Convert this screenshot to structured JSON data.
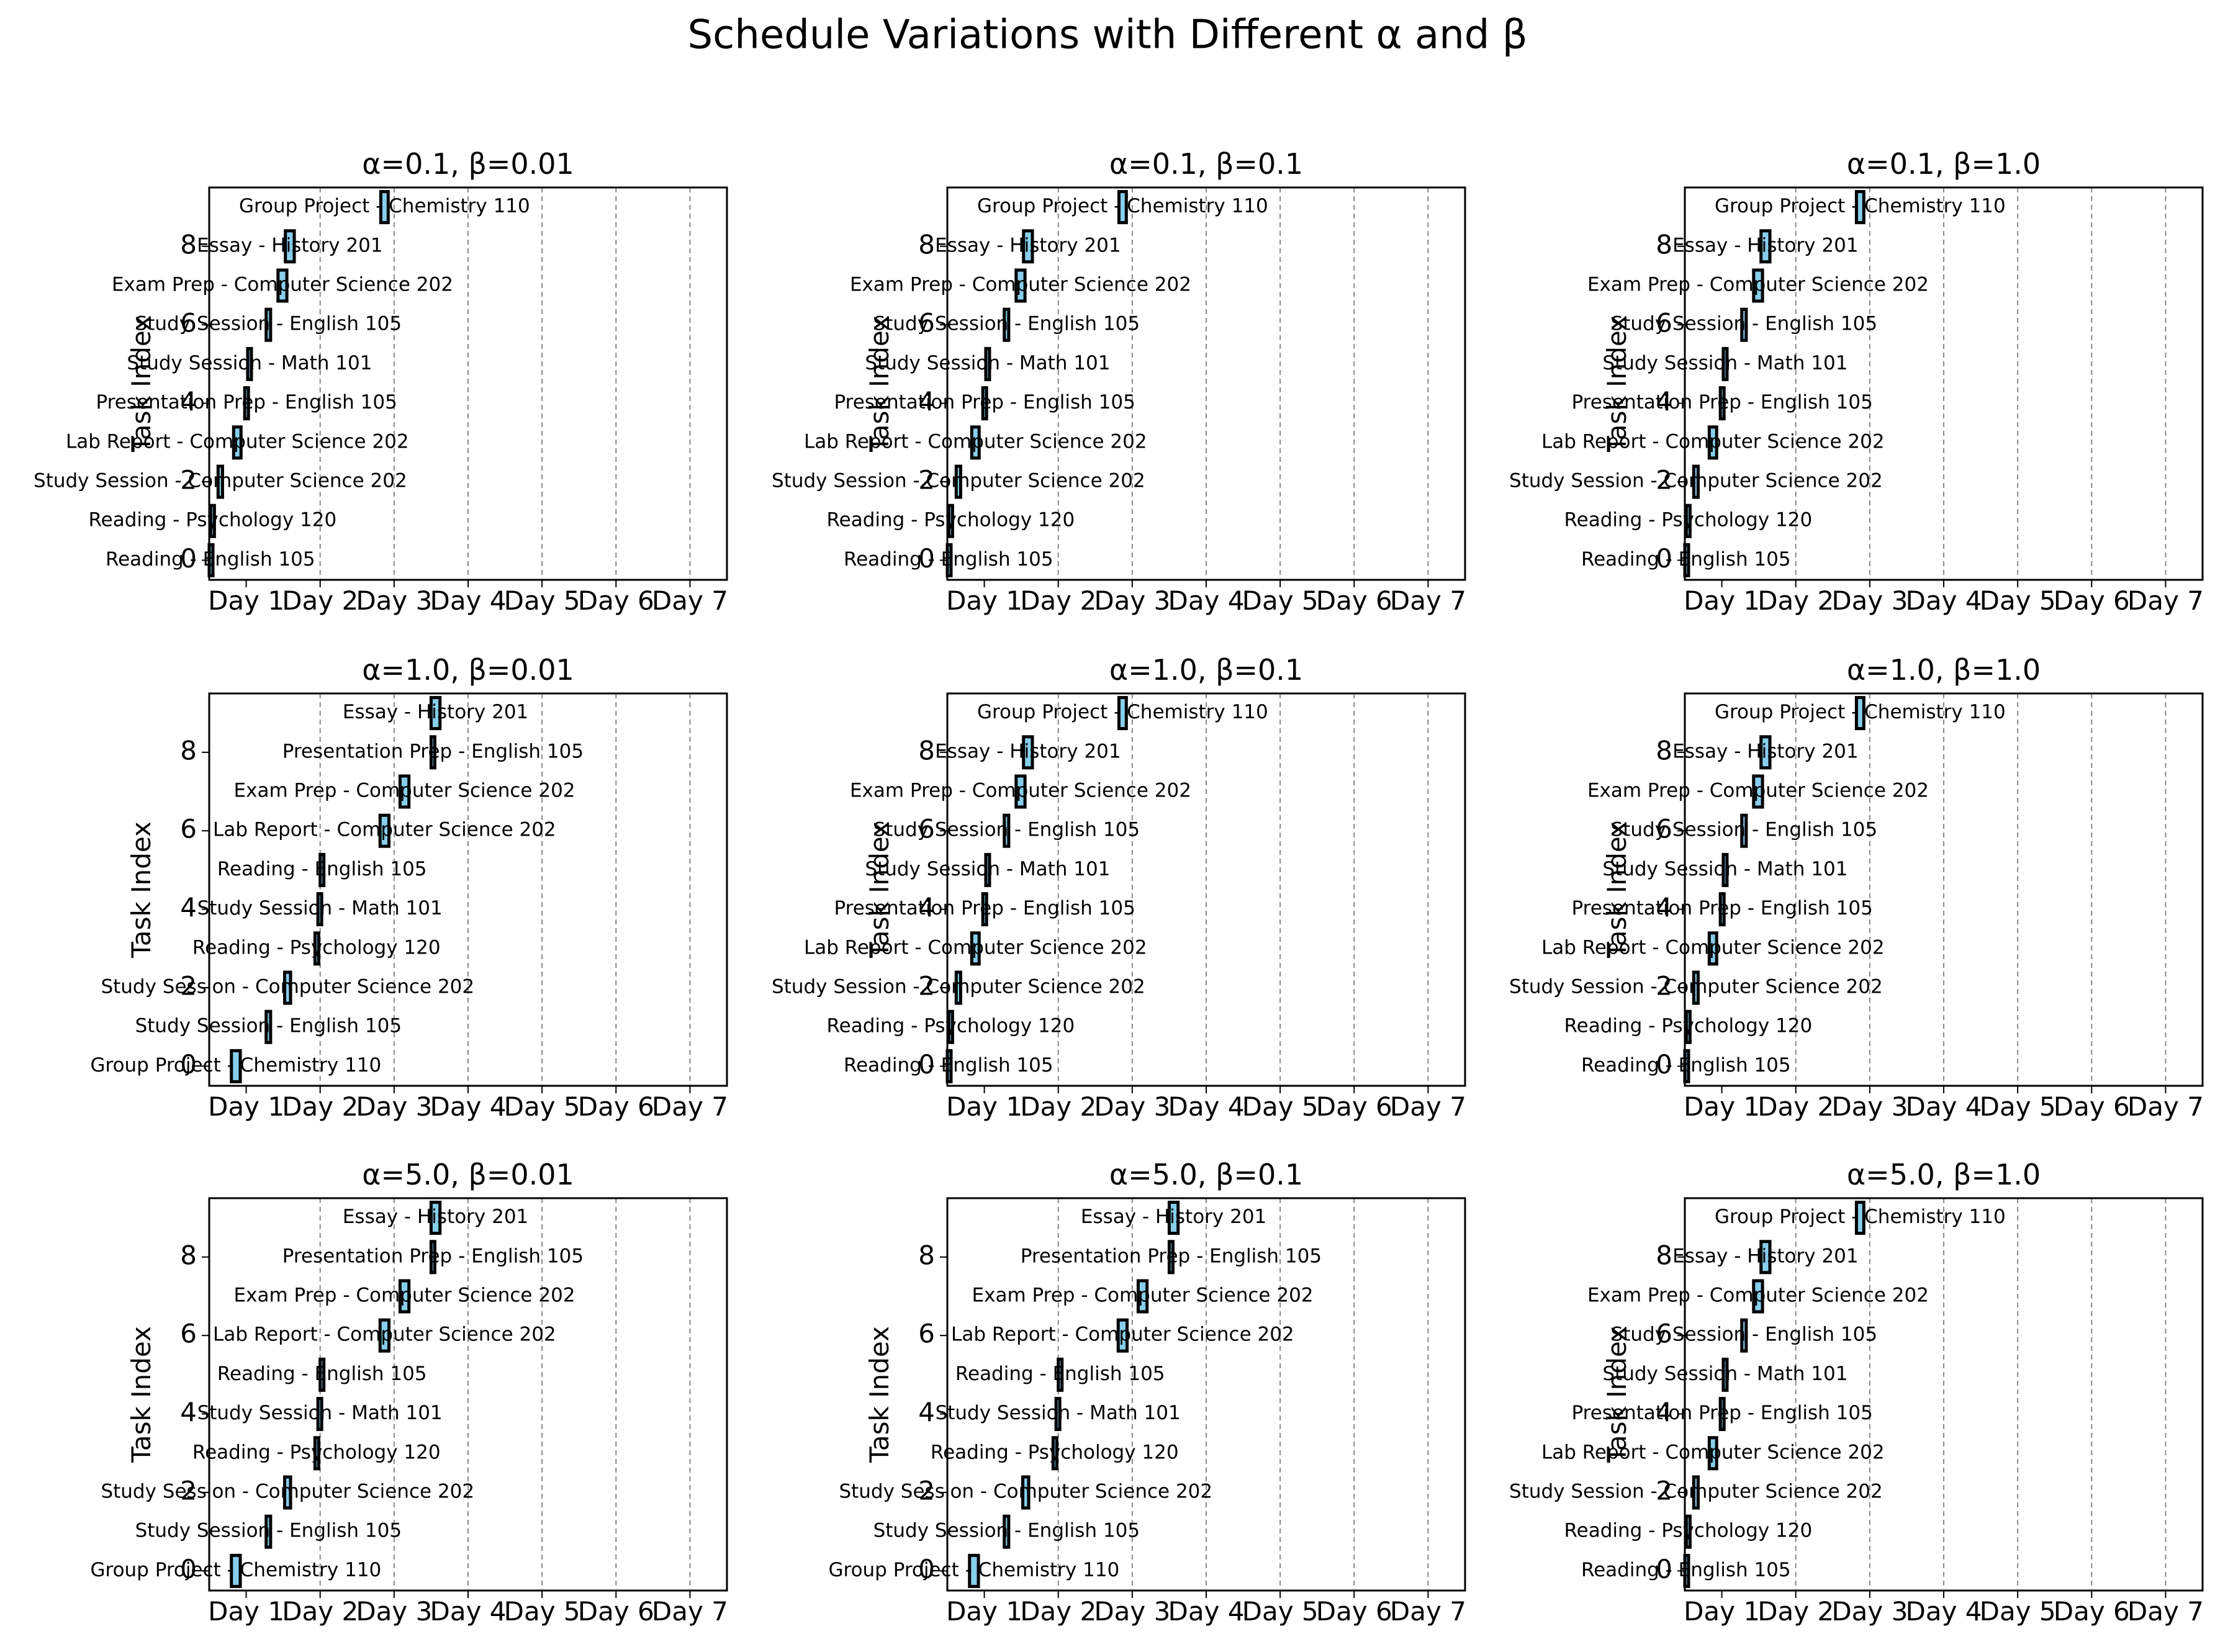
{
  "figure": {
    "suptitle": "Schedule Variations with Different α and β"
  },
  "chart_data": [
    {
      "type": "bar",
      "title": "α=0.1, β=0.01",
      "xlabel": "",
      "ylabel": "Task Index",
      "x_ticks": [
        "Day 1",
        "Day 2",
        "Day 3",
        "Day 4",
        "Day 5",
        "Day 6",
        "Day 7"
      ],
      "y_ticks": [
        0,
        2,
        4,
        6,
        8
      ],
      "xlim": [
        0,
        7
      ],
      "ylim": [
        -0.5,
        9.5
      ],
      "grid": "vertical dashed",
      "bar_color": "#87ceeb",
      "tasks": [
        {
          "index": 0,
          "label": "Reading - English 105",
          "start": 0.0,
          "duration": 0.03
        },
        {
          "index": 1,
          "label": "Reading - Psychology 120",
          "start": 0.02,
          "duration": 0.05
        },
        {
          "index": 2,
          "label": "Study Session - Computer Science 202",
          "start": 0.12,
          "duration": 0.06
        },
        {
          "index": 3,
          "label": "Lab Report - Computer Science 202",
          "start": 0.33,
          "duration": 0.1
        },
        {
          "index": 4,
          "label": "Presentation Prep - English 105",
          "start": 0.48,
          "duration": 0.05
        },
        {
          "index": 5,
          "label": "Study Session - Math 101",
          "start": 0.52,
          "duration": 0.05
        },
        {
          "index": 6,
          "label": "Study Session - English 105",
          "start": 0.77,
          "duration": 0.06
        },
        {
          "index": 7,
          "label": "Exam Prep - Computer Science 202",
          "start": 0.93,
          "duration": 0.12
        },
        {
          "index": 8,
          "label": "Essay - History 201",
          "start": 1.03,
          "duration": 0.12
        },
        {
          "index": 9,
          "label": "Group Project - Chemistry 110",
          "start": 2.32,
          "duration": 0.1
        }
      ]
    },
    {
      "type": "bar",
      "title": "α=0.1, β=0.1",
      "xlabel": "",
      "ylabel": "Task Index",
      "x_ticks": [
        "Day 1",
        "Day 2",
        "Day 3",
        "Day 4",
        "Day 5",
        "Day 6",
        "Day 7"
      ],
      "y_ticks": [
        0,
        2,
        4,
        6,
        8
      ],
      "xlim": [
        0,
        7
      ],
      "ylim": [
        -0.5,
        9.5
      ],
      "grid": "vertical dashed",
      "bar_color": "#87ceeb",
      "tasks": [
        {
          "index": 0,
          "label": "Reading - English 105",
          "start": 0.0,
          "duration": 0.03
        },
        {
          "index": 1,
          "label": "Reading - Psychology 120",
          "start": 0.02,
          "duration": 0.05
        },
        {
          "index": 2,
          "label": "Study Session - Computer Science 202",
          "start": 0.12,
          "duration": 0.06
        },
        {
          "index": 3,
          "label": "Lab Report - Computer Science 202",
          "start": 0.33,
          "duration": 0.1
        },
        {
          "index": 4,
          "label": "Presentation Prep - English 105",
          "start": 0.48,
          "duration": 0.05
        },
        {
          "index": 5,
          "label": "Study Session - Math 101",
          "start": 0.52,
          "duration": 0.05
        },
        {
          "index": 6,
          "label": "Study Session - English 105",
          "start": 0.77,
          "duration": 0.06
        },
        {
          "index": 7,
          "label": "Exam Prep - Computer Science 202",
          "start": 0.93,
          "duration": 0.12
        },
        {
          "index": 8,
          "label": "Essay - History 201",
          "start": 1.03,
          "duration": 0.12
        },
        {
          "index": 9,
          "label": "Group Project - Chemistry 110",
          "start": 2.32,
          "duration": 0.1
        }
      ]
    },
    {
      "type": "bar",
      "title": "α=0.1, β=1.0",
      "xlabel": "",
      "ylabel": "Task Index",
      "x_ticks": [
        "Day 1",
        "Day 2",
        "Day 3",
        "Day 4",
        "Day 5",
        "Day 6",
        "Day 7"
      ],
      "y_ticks": [
        0,
        2,
        4,
        6,
        8
      ],
      "xlim": [
        0,
        7
      ],
      "ylim": [
        -0.5,
        9.5
      ],
      "grid": "vertical dashed",
      "bar_color": "#87ceeb",
      "tasks": [
        {
          "index": 0,
          "label": "Reading - English 105",
          "start": 0.0,
          "duration": 0.03
        },
        {
          "index": 1,
          "label": "Reading - Psychology 120",
          "start": 0.02,
          "duration": 0.05
        },
        {
          "index": 2,
          "label": "Study Session - Computer Science 202",
          "start": 0.12,
          "duration": 0.06
        },
        {
          "index": 3,
          "label": "Lab Report - Computer Science 202",
          "start": 0.33,
          "duration": 0.1
        },
        {
          "index": 4,
          "label": "Presentation Prep - English 105",
          "start": 0.48,
          "duration": 0.05
        },
        {
          "index": 5,
          "label": "Study Session - Math 101",
          "start": 0.52,
          "duration": 0.05
        },
        {
          "index": 6,
          "label": "Study Session - English 105",
          "start": 0.77,
          "duration": 0.06
        },
        {
          "index": 7,
          "label": "Exam Prep - Computer Science 202",
          "start": 0.93,
          "duration": 0.12
        },
        {
          "index": 8,
          "label": "Essay - History 201",
          "start": 1.03,
          "duration": 0.12
        },
        {
          "index": 9,
          "label": "Group Project - Chemistry 110",
          "start": 2.32,
          "duration": 0.1
        }
      ]
    },
    {
      "type": "bar",
      "title": "α=1.0, β=0.01",
      "xlabel": "",
      "ylabel": "Task Index",
      "x_ticks": [
        "Day 1",
        "Day 2",
        "Day 3",
        "Day 4",
        "Day 5",
        "Day 6",
        "Day 7"
      ],
      "y_ticks": [
        0,
        2,
        4,
        6,
        8
      ],
      "xlim": [
        0,
        7
      ],
      "ylim": [
        -0.5,
        9.5
      ],
      "grid": "vertical dashed",
      "bar_color": "#87ceeb",
      "tasks": [
        {
          "index": 0,
          "label": "Group Project - Chemistry 110",
          "start": 0.3,
          "duration": 0.12
        },
        {
          "index": 1,
          "label": "Study Session - English 105",
          "start": 0.77,
          "duration": 0.06
        },
        {
          "index": 2,
          "label": "Study Session - Computer Science 202",
          "start": 1.02,
          "duration": 0.08
        },
        {
          "index": 3,
          "label": "Reading - Psychology 120",
          "start": 1.43,
          "duration": 0.04
        },
        {
          "index": 4,
          "label": "Study Session - Math 101",
          "start": 1.47,
          "duration": 0.05
        },
        {
          "index": 5,
          "label": "Reading - English 105",
          "start": 1.5,
          "duration": 0.05
        },
        {
          "index": 6,
          "label": "Lab Report - Computer Science 202",
          "start": 2.31,
          "duration": 0.12
        },
        {
          "index": 7,
          "label": "Exam Prep - Computer Science 202",
          "start": 2.58,
          "duration": 0.12
        },
        {
          "index": 8,
          "label": "Presentation Prep - English 105",
          "start": 3.0,
          "duration": 0.05
        },
        {
          "index": 9,
          "label": "Essay - History 201",
          "start": 3.0,
          "duration": 0.12
        }
      ]
    },
    {
      "type": "bar",
      "title": "α=1.0, β=0.1",
      "xlabel": "",
      "ylabel": "Task Index",
      "x_ticks": [
        "Day 1",
        "Day 2",
        "Day 3",
        "Day 4",
        "Day 5",
        "Day 6",
        "Day 7"
      ],
      "y_ticks": [
        0,
        2,
        4,
        6,
        8
      ],
      "xlim": [
        0,
        7
      ],
      "ylim": [
        -0.5,
        9.5
      ],
      "grid": "vertical dashed",
      "bar_color": "#87ceeb",
      "tasks": [
        {
          "index": 0,
          "label": "Reading - English 105",
          "start": 0.0,
          "duration": 0.03
        },
        {
          "index": 1,
          "label": "Reading - Psychology 120",
          "start": 0.02,
          "duration": 0.05
        },
        {
          "index": 2,
          "label": "Study Session - Computer Science 202",
          "start": 0.12,
          "duration": 0.06
        },
        {
          "index": 3,
          "label": "Lab Report - Computer Science 202",
          "start": 0.33,
          "duration": 0.1
        },
        {
          "index": 4,
          "label": "Presentation Prep - English 105",
          "start": 0.48,
          "duration": 0.05
        },
        {
          "index": 5,
          "label": "Study Session - Math 101",
          "start": 0.52,
          "duration": 0.05
        },
        {
          "index": 6,
          "label": "Study Session - English 105",
          "start": 0.77,
          "duration": 0.06
        },
        {
          "index": 7,
          "label": "Exam Prep - Computer Science 202",
          "start": 0.93,
          "duration": 0.12
        },
        {
          "index": 8,
          "label": "Essay - History 201",
          "start": 1.03,
          "duration": 0.12
        },
        {
          "index": 9,
          "label": "Group Project - Chemistry 110",
          "start": 2.32,
          "duration": 0.1
        }
      ]
    },
    {
      "type": "bar",
      "title": "α=1.0, β=1.0",
      "xlabel": "",
      "ylabel": "Task Index",
      "x_ticks": [
        "Day 1",
        "Day 2",
        "Day 3",
        "Day 4",
        "Day 5",
        "Day 6",
        "Day 7"
      ],
      "y_ticks": [
        0,
        2,
        4,
        6,
        8
      ],
      "xlim": [
        0,
        7
      ],
      "ylim": [
        -0.5,
        9.5
      ],
      "grid": "vertical dashed",
      "bar_color": "#87ceeb",
      "tasks": [
        {
          "index": 0,
          "label": "Reading - English 105",
          "start": 0.0,
          "duration": 0.03
        },
        {
          "index": 1,
          "label": "Reading - Psychology 120",
          "start": 0.02,
          "duration": 0.05
        },
        {
          "index": 2,
          "label": "Study Session - Computer Science 202",
          "start": 0.12,
          "duration": 0.06
        },
        {
          "index": 3,
          "label": "Lab Report - Computer Science 202",
          "start": 0.33,
          "duration": 0.1
        },
        {
          "index": 4,
          "label": "Presentation Prep - English 105",
          "start": 0.48,
          "duration": 0.05
        },
        {
          "index": 5,
          "label": "Study Session - Math 101",
          "start": 0.52,
          "duration": 0.05
        },
        {
          "index": 6,
          "label": "Study Session - English 105",
          "start": 0.77,
          "duration": 0.06
        },
        {
          "index": 7,
          "label": "Exam Prep - Computer Science 202",
          "start": 0.93,
          "duration": 0.12
        },
        {
          "index": 8,
          "label": "Essay - History 201",
          "start": 1.03,
          "duration": 0.12
        },
        {
          "index": 9,
          "label": "Group Project - Chemistry 110",
          "start": 2.32,
          "duration": 0.1
        }
      ]
    },
    {
      "type": "bar",
      "title": "α=5.0, β=0.01",
      "xlabel": "",
      "ylabel": "Task Index",
      "x_ticks": [
        "Day 1",
        "Day 2",
        "Day 3",
        "Day 4",
        "Day 5",
        "Day 6",
        "Day 7"
      ],
      "y_ticks": [
        0,
        2,
        4,
        6,
        8
      ],
      "xlim": [
        0,
        7
      ],
      "ylim": [
        -0.5,
        9.5
      ],
      "grid": "vertical dashed",
      "bar_color": "#87ceeb",
      "tasks": [
        {
          "index": 0,
          "label": "Group Project - Chemistry 110",
          "start": 0.3,
          "duration": 0.12
        },
        {
          "index": 1,
          "label": "Study Session - English 105",
          "start": 0.77,
          "duration": 0.06
        },
        {
          "index": 2,
          "label": "Study Session - Computer Science 202",
          "start": 1.02,
          "duration": 0.08
        },
        {
          "index": 3,
          "label": "Reading - Psychology 120",
          "start": 1.43,
          "duration": 0.04
        },
        {
          "index": 4,
          "label": "Study Session - Math 101",
          "start": 1.47,
          "duration": 0.05
        },
        {
          "index": 5,
          "label": "Reading - English 105",
          "start": 1.5,
          "duration": 0.05
        },
        {
          "index": 6,
          "label": "Lab Report - Computer Science 202",
          "start": 2.31,
          "duration": 0.12
        },
        {
          "index": 7,
          "label": "Exam Prep - Computer Science 202",
          "start": 2.58,
          "duration": 0.12
        },
        {
          "index": 8,
          "label": "Presentation Prep - English 105",
          "start": 3.0,
          "duration": 0.05
        },
        {
          "index": 9,
          "label": "Essay - History 201",
          "start": 3.0,
          "duration": 0.12
        }
      ]
    },
    {
      "type": "bar",
      "title": "α=5.0, β=0.1",
      "xlabel": "",
      "ylabel": "Task Index",
      "x_ticks": [
        "Day 1",
        "Day 2",
        "Day 3",
        "Day 4",
        "Day 5",
        "Day 6",
        "Day 7"
      ],
      "y_ticks": [
        0,
        2,
        4,
        6,
        8
      ],
      "xlim": [
        0,
        7
      ],
      "ylim": [
        -0.5,
        9.5
      ],
      "grid": "vertical dashed",
      "bar_color": "#87ceeb",
      "tasks": [
        {
          "index": 0,
          "label": "Group Project - Chemistry 110",
          "start": 0.3,
          "duration": 0.12
        },
        {
          "index": 1,
          "label": "Study Session - English 105",
          "start": 0.77,
          "duration": 0.06
        },
        {
          "index": 2,
          "label": "Study Session - Computer Science 202",
          "start": 1.02,
          "duration": 0.08
        },
        {
          "index": 3,
          "label": "Reading - Psychology 120",
          "start": 1.43,
          "duration": 0.04
        },
        {
          "index": 4,
          "label": "Study Session - Math 101",
          "start": 1.47,
          "duration": 0.05
        },
        {
          "index": 5,
          "label": "Reading - English 105",
          "start": 1.5,
          "duration": 0.05
        },
        {
          "index": 6,
          "label": "Lab Report - Computer Science 202",
          "start": 2.31,
          "duration": 0.12
        },
        {
          "index": 7,
          "label": "Exam Prep - Computer Science 202",
          "start": 2.58,
          "duration": 0.12
        },
        {
          "index": 8,
          "label": "Presentation Prep - English 105",
          "start": 3.0,
          "duration": 0.05
        },
        {
          "index": 9,
          "label": "Essay - History 201",
          "start": 3.0,
          "duration": 0.12
        }
      ]
    },
    {
      "type": "bar",
      "title": "α=5.0, β=1.0",
      "xlabel": "",
      "ylabel": "Task Index",
      "x_ticks": [
        "Day 1",
        "Day 2",
        "Day 3",
        "Day 4",
        "Day 5",
        "Day 6",
        "Day 7"
      ],
      "y_ticks": [
        0,
        2,
        4,
        6,
        8
      ],
      "xlim": [
        0,
        7
      ],
      "ylim": [
        -0.5,
        9.5
      ],
      "grid": "vertical dashed",
      "bar_color": "#87ceeb",
      "tasks": [
        {
          "index": 0,
          "label": "Reading - English 105",
          "start": 0.0,
          "duration": 0.03
        },
        {
          "index": 1,
          "label": "Reading - Psychology 120",
          "start": 0.02,
          "duration": 0.05
        },
        {
          "index": 2,
          "label": "Study Session - Computer Science 202",
          "start": 0.12,
          "duration": 0.06
        },
        {
          "index": 3,
          "label": "Lab Report - Computer Science 202",
          "start": 0.33,
          "duration": 0.1
        },
        {
          "index": 4,
          "label": "Presentation Prep - English 105",
          "start": 0.48,
          "duration": 0.05
        },
        {
          "index": 5,
          "label": "Study Session - Math 101",
          "start": 0.52,
          "duration": 0.05
        },
        {
          "index": 6,
          "label": "Study Session - English 105",
          "start": 0.77,
          "duration": 0.06
        },
        {
          "index": 7,
          "label": "Exam Prep - Computer Science 202",
          "start": 0.93,
          "duration": 0.12
        },
        {
          "index": 8,
          "label": "Essay - History 201",
          "start": 1.03,
          "duration": 0.12
        },
        {
          "index": 9,
          "label": "Group Project - Chemistry 110",
          "start": 2.32,
          "duration": 0.1
        }
      ]
    }
  ]
}
